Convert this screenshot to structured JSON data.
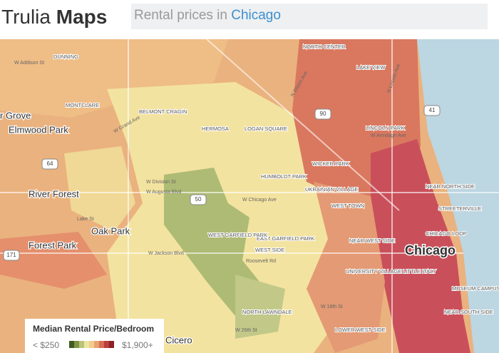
{
  "header": {
    "brand": "Trulia",
    "product": "Maps",
    "search_prefix": "Rental prices in",
    "search_city": "Chicago"
  },
  "map": {
    "city": "Chicago",
    "places": [
      "Elmwood Park",
      "River Forest",
      "Oak Park",
      "Forest Park",
      "Cicero",
      "r Grove"
    ],
    "neighborhoods": [
      "DUNNING",
      "MONTCLARE",
      "BELMONT CRAGIN",
      "HERMOSA",
      "LOGAN SQUARE",
      "HUMBOLDT PARK",
      "WICKER PARK",
      "UKRAINIAN VILLAGE",
      "WEST TOWN",
      "NORTH CENTER",
      "LAKE VIEW",
      "LINCOLN PARK",
      "NEAR NORTH SIDE",
      "STREETERVILLE",
      "CHICAGO LOOP",
      "NEAR WEST SIDE",
      "EAST GARFIELD PARK",
      "WEST GARFIELD PARK",
      "WEST SIDE",
      "UNIVERSITY VILLAGE LITTLE ITALY",
      "MUSEUM CAMPUS",
      "NEAR SOUTH SIDE",
      "NORTH LAWNDALE",
      "LOWER WEST SIDE"
    ],
    "streets": [
      "W Addison St",
      "W Armitage Ave",
      "W Grand Ave",
      "W Division St",
      "W Augusta Blvd",
      "W Chicago Ave",
      "Lake St",
      "W Jackson Blvd",
      "Roosevelt Rd",
      "W 26th St",
      "W 18th St",
      "N Elston Ave",
      "N Lincoln Ave"
    ],
    "highways": [
      "41",
      "90",
      "64",
      "50",
      "171"
    ]
  },
  "legend": {
    "title": "Median Rental Price/Bedroom",
    "min_label": "< $250",
    "max_label": "$1,900+",
    "colors": [
      "#3f5a22",
      "#7e9442",
      "#b9c37a",
      "#ece4a0",
      "#f2cc8f",
      "#e7a46e",
      "#d76d58",
      "#b9403c",
      "#8e2027"
    ]
  }
}
